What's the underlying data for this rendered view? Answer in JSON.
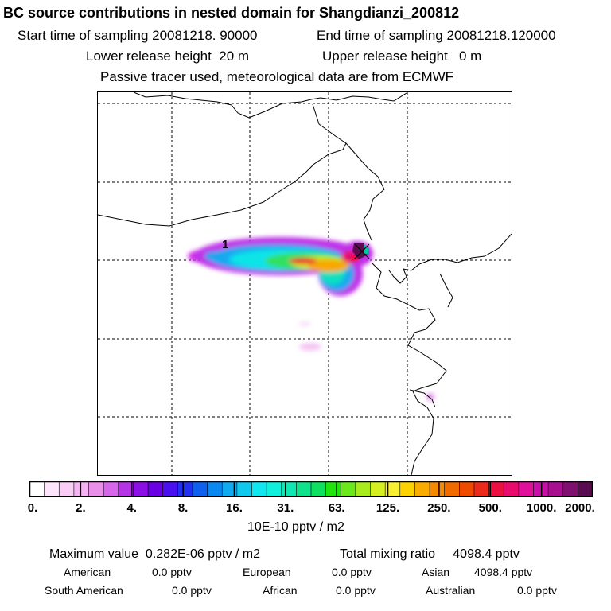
{
  "header": {
    "title": "BC  source contributions in nested domain for Shangdianzi_200812",
    "start_label": "Start time of sampling",
    "start_value": "20081218. 90000",
    "end_label": "End time of sampling",
    "end_value": "20081218.120000",
    "lower_label": "Lower release height",
    "lower_value": "20 m",
    "upper_label": "Upper release height",
    "upper_value": "0 m",
    "note": "Passive tracer used, meteorological data are from ECMWF"
  },
  "map": {
    "marker_label": "1",
    "station_marker": "x-icon"
  },
  "colorbar": {
    "tick_labels": [
      "0.",
      "2.",
      "4.",
      "8.",
      "16.",
      "31.",
      "63.",
      "125.",
      "250.",
      "500.",
      "1000.",
      "2000."
    ],
    "colors": [
      "#ffffff",
      "#fde6fb",
      "#f9cdf6",
      "#f5b3f2",
      "#e98ee9",
      "#d866ea",
      "#b534e8",
      "#8c10e6",
      "#6a00e4",
      "#4a10f0",
      "#2230f2",
      "#1060f0",
      "#0a88f0",
      "#10aaf0",
      "#10c8ee",
      "#10e6ee",
      "#10eedc",
      "#10e8b4",
      "#10e28c",
      "#10e060",
      "#20e410",
      "#6ae81a",
      "#a8ec1e",
      "#d4f020",
      "#f8f030",
      "#fcd200",
      "#f8ac00",
      "#f48a00",
      "#f06a00",
      "#ee4a00",
      "#ec2a1a",
      "#ec1040",
      "#e80a6c",
      "#e0109a",
      "#c810a8",
      "#a81090",
      "#801070",
      "#5a0c50"
    ],
    "units": "10E-10 pptv / m2"
  },
  "stats": {
    "max_label": "Maximum value",
    "max_value": "0.282E-06 pptv / m2",
    "total_label": "Total mixing ratio",
    "total_value": "4098.4 pptv",
    "regions": [
      {
        "name": "American",
        "value": "0.0 pptv"
      },
      {
        "name": "European",
        "value": "0.0 pptv"
      },
      {
        "name": "Asian",
        "value": "4098.4 pptv"
      },
      {
        "name": "South American",
        "value": "0.0 pptv"
      },
      {
        "name": "African",
        "value": "0.0 pptv"
      },
      {
        "name": "Australian",
        "value": "0.0 pptv"
      }
    ]
  }
}
